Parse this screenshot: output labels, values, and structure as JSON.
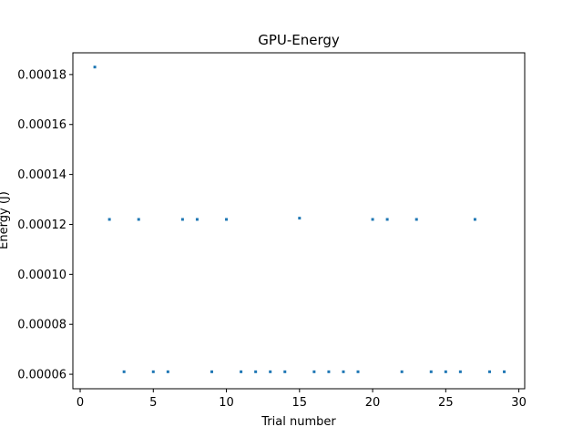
{
  "chart_data": {
    "type": "scatter",
    "title": "GPU-Energy",
    "xlabel": "Trial number",
    "ylabel": "Energy (J)",
    "xlim": [
      -0.5,
      30.4
    ],
    "ylim": [
      5.42e-05,
      0.0001887
    ],
    "xticks": [
      0,
      5,
      10,
      15,
      20,
      25,
      30
    ],
    "xtick_labels": [
      "0",
      "5",
      "10",
      "15",
      "20",
      "25",
      "30"
    ],
    "yticks": [
      6e-05,
      8e-05,
      0.0001,
      0.00012,
      0.00014,
      0.00016,
      0.00018
    ],
    "ytick_labels": [
      "0.00006",
      "0.00008",
      "0.00010",
      "0.00012",
      "0.00014",
      "0.00016",
      "0.00018"
    ],
    "grid": false,
    "color": "#1f77b4",
    "series": [
      {
        "x": [
          1,
          2,
          3,
          4,
          5,
          6,
          7,
          8,
          9,
          10,
          11,
          12,
          13,
          14,
          15,
          16,
          17,
          18,
          19,
          20,
          21,
          22,
          23,
          24,
          25,
          26,
          27,
          28,
          29
        ],
        "y": [
          0.000183,
          0.000122,
          6.1e-05,
          0.000122,
          6.1e-05,
          6.1e-05,
          0.000122,
          0.000122,
          6.1e-05,
          0.000122,
          6.1e-05,
          6.1e-05,
          6.1e-05,
          6.1e-05,
          0.0001225,
          6.1e-05,
          6.1e-05,
          6.1e-05,
          6.1e-05,
          0.000122,
          0.000122,
          6.1e-05,
          0.000122,
          6.1e-05,
          6.1e-05,
          6.1e-05,
          0.000122,
          6.1e-05,
          6.1e-05
        ]
      }
    ]
  }
}
